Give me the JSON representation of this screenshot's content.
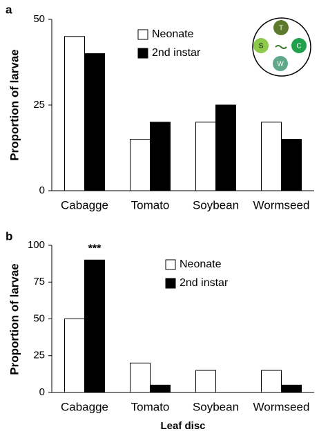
{
  "chart_data": [
    {
      "type": "bar",
      "panel_label": "a",
      "ylabel": "Proportion of larvae",
      "categories": [
        "Cabagge",
        "Tomato",
        "Soybean",
        "Wormseed"
      ],
      "series": [
        {
          "name": "Neonate",
          "color": "#ffffff",
          "values": [
            45,
            15,
            20,
            20
          ]
        },
        {
          "name": "2nd instar",
          "color": "#000000",
          "values": [
            40,
            20,
            25,
            15
          ]
        }
      ],
      "ylim": [
        0,
        50
      ],
      "yticks": [
        0,
        25,
        50
      ],
      "inset_labels": [
        "T",
        "S",
        "C",
        "W"
      ]
    },
    {
      "type": "bar",
      "panel_label": "b",
      "ylabel": "Proportion of larvae",
      "xlabel": "Leaf disc",
      "categories": [
        "Cabagge",
        "Tomato",
        "Soybean",
        "Wormseed"
      ],
      "series": [
        {
          "name": "Neonate",
          "color": "#ffffff",
          "values": [
            50,
            20,
            15,
            15
          ]
        },
        {
          "name": "2nd instar",
          "color": "#000000",
          "values": [
            90,
            5,
            0,
            5
          ]
        }
      ],
      "ylim": [
        0,
        100
      ],
      "yticks": [
        0,
        25,
        50,
        75,
        100
      ],
      "annotations": [
        "***"
      ]
    }
  ]
}
